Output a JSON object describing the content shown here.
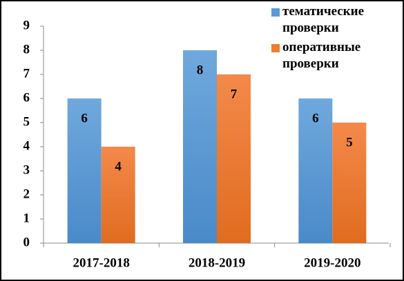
{
  "chart_data": {
    "type": "bar",
    "categories": [
      "2017-2018",
      "2018-2019",
      "2019-2020"
    ],
    "series": [
      {
        "name": "тематические проверки",
        "color": "#5b9bd5",
        "values": [
          6,
          8,
          6
        ]
      },
      {
        "name": "оперативные проверки",
        "color": "#ed7d31",
        "values": [
          4,
          7,
          5
        ]
      }
    ],
    "ylim": [
      0,
      9
    ],
    "yticks": [
      0,
      1,
      2,
      3,
      4,
      5,
      6,
      7,
      8,
      9
    ],
    "grid": false,
    "legend": "top-right",
    "data_labels": true
  }
}
